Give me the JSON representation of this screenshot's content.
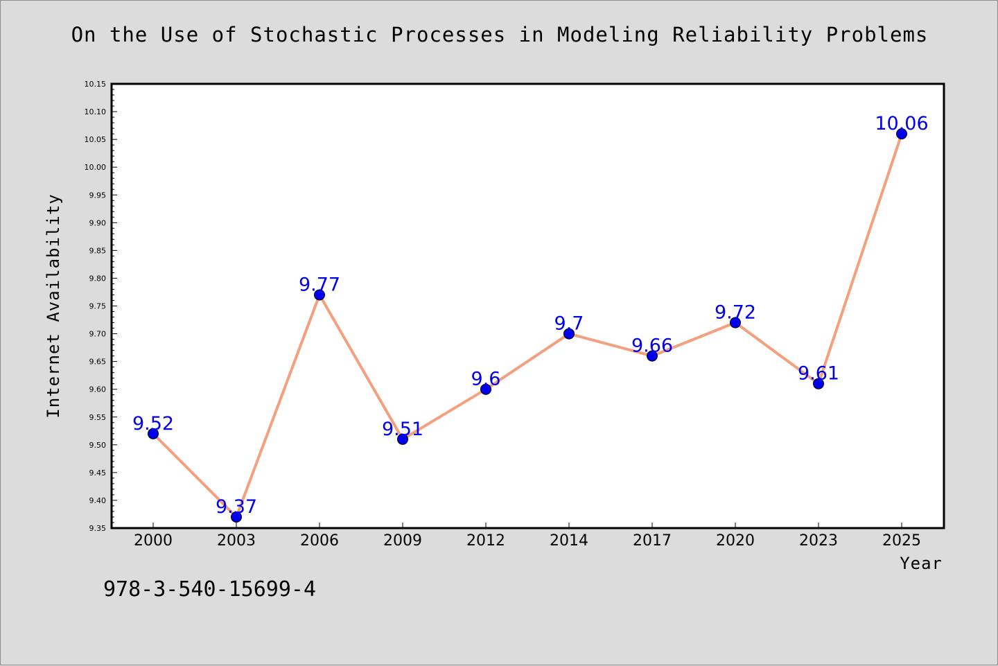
{
  "page": {
    "title": "On the Use of Stochastic Processes in Modeling Reliability Problems",
    "caption": "978-3-540-15699-4"
  },
  "colors": {
    "line": "#f4a07e",
    "marker": "#0000ee",
    "data_label": "#0000ee",
    "plot_background": "#ffffff",
    "page_background": "#dcdcdc"
  },
  "chart_data": {
    "type": "line",
    "title": "On the Use of Stochastic Processes in Modeling Reliability Problems",
    "xlabel": "Year",
    "ylabel": "Internet Availability",
    "categories": [
      "2000",
      "2003",
      "2006",
      "2009",
      "2012",
      "2014",
      "2017",
      "2020",
      "2023",
      "2025"
    ],
    "series": [
      {
        "values": [
          9.52,
          9.37,
          9.77,
          9.51,
          9.6,
          9.7,
          9.66,
          9.72,
          9.61,
          10.06
        ],
        "labels": [
          "9.52",
          "9.37",
          "9.77",
          "9.51",
          "9.6",
          "9.7",
          "9.66",
          "9.72",
          "9.61",
          "10.06"
        ]
      }
    ],
    "ylim": [
      9.35,
      10.15
    ],
    "yticks": [
      "9.35",
      "9.40",
      "9.45",
      "9.50",
      "9.55",
      "9.60",
      "9.65",
      "9.70",
      "9.75",
      "9.80",
      "9.85",
      "9.90",
      "9.95",
      "10.00",
      "10.05",
      "10.10",
      "10.15"
    ],
    "grid": false,
    "legend": "none"
  }
}
